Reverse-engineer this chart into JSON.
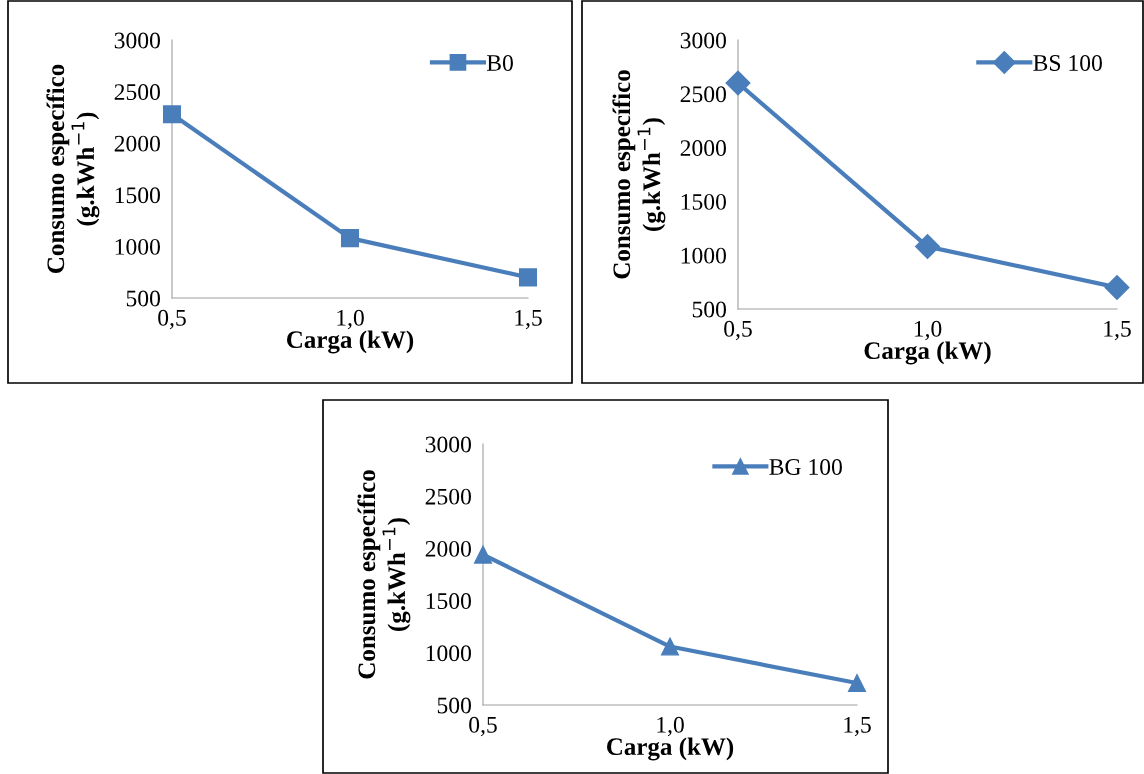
{
  "chart_data": [
    {
      "type": "line",
      "xlabel": "Carga (kW)",
      "ylabel": "Consumo específico\n(g.kWh$^{−1}$)",
      "x": [
        0.5,
        1.0,
        1.5
      ],
      "xlim": [
        0.5,
        1.5
      ],
      "xticks": [
        {
          "value": 0.5,
          "label": "0,5"
        },
        {
          "value": 1.0,
          "label": "1,0"
        },
        {
          "value": 1.5,
          "label": "1,5"
        }
      ],
      "ylim": [
        500,
        3000
      ],
      "yticks": [
        500,
        1000,
        1500,
        2000,
        2500,
        3000
      ],
      "marker": "square",
      "legend": "top right",
      "grid": false,
      "series": [
        {
          "name": "B0",
          "color": "#4a7ebb",
          "values": [
            2280,
            1080,
            700
          ]
        }
      ]
    },
    {
      "type": "line",
      "xlabel": "Carga (kW)",
      "ylabel": "Consumo específico\n(g.kWh$^{−1}$)",
      "x": [
        0.5,
        1.0,
        1.5
      ],
      "xlim": [
        0.5,
        1.5
      ],
      "xticks": [
        {
          "value": 0.5,
          "label": "0,5"
        },
        {
          "value": 1.0,
          "label": "1,0"
        },
        {
          "value": 1.5,
          "label": "1,5"
        }
      ],
      "ylim": [
        500,
        3000
      ],
      "yticks": [
        500,
        1000,
        1500,
        2000,
        2500,
        3000
      ],
      "marker": "diamond",
      "legend": "top right",
      "grid": false,
      "series": [
        {
          "name": "BS 100",
          "color": "#4a7ebb",
          "values": [
            2600,
            1080,
            700
          ]
        }
      ]
    },
    {
      "type": "line",
      "xlabel": "Carga (kW)",
      "ylabel": "Consumo específico\n(g.kWh$^{−1}$)",
      "x": [
        0.5,
        1.0,
        1.5
      ],
      "xlim": [
        0.5,
        1.5
      ],
      "xticks": [
        {
          "value": 0.5,
          "label": "0,5"
        },
        {
          "value": 1.0,
          "label": "1,0"
        },
        {
          "value": 1.5,
          "label": "1,5"
        }
      ],
      "ylim": [
        500,
        3000
      ],
      "yticks": [
        500,
        1000,
        1500,
        2000,
        2500,
        3000
      ],
      "marker": "triangle",
      "legend": "top right",
      "grid": false,
      "series": [
        {
          "name": "BG 100",
          "color": "#4a7ebb",
          "values": [
            1940,
            1060,
            710
          ]
        }
      ]
    }
  ]
}
